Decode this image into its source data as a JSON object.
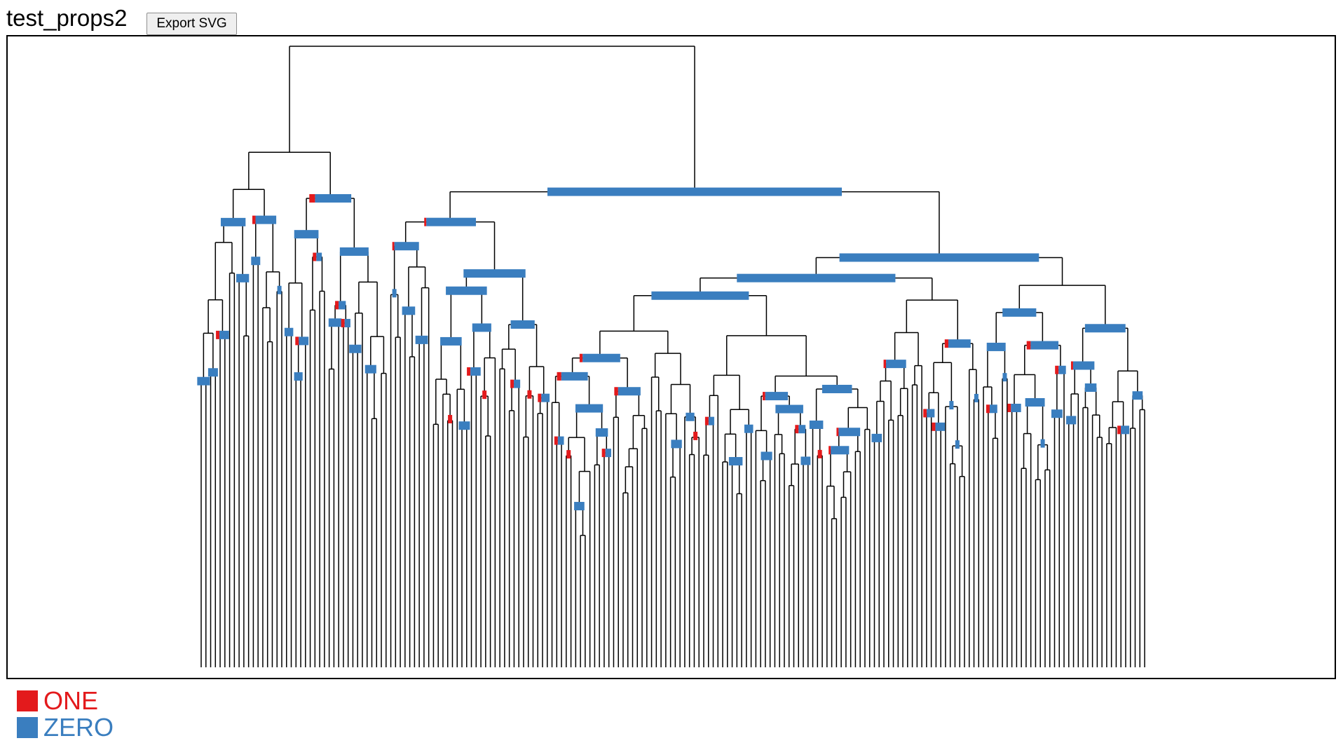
{
  "header": {
    "title": "test_props2",
    "export_label": "Export SVG"
  },
  "colors": {
    "one": "#e31a1c",
    "zero": "#3a7ebf",
    "branch": "#000000"
  },
  "legend": [
    {
      "label": "ONE",
      "color": "#e31a1c"
    },
    {
      "label": "ZERO",
      "color": "#3a7ebf"
    }
  ],
  "tree": {
    "type": "dendrogram",
    "leaf_count": 200,
    "states": [
      "ONE",
      "ZERO"
    ]
  }
}
